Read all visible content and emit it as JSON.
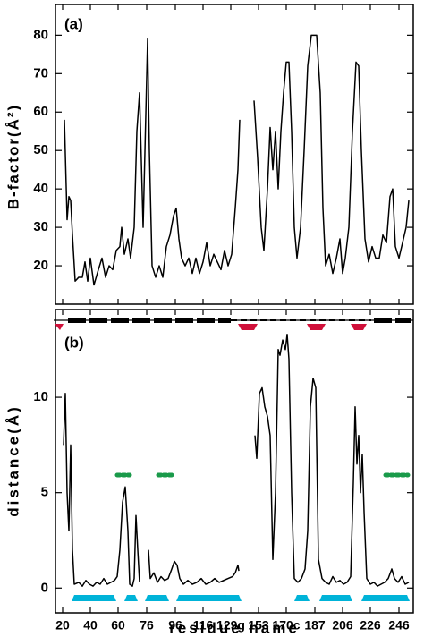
{
  "chart_data": [
    {
      "type": "line",
      "annotation": "(a)",
      "ylabel": "B-factor(Å²)",
      "color": "#000000",
      "xlim": [
        0,
        400
      ],
      "ylim": [
        10,
        88
      ],
      "yticks": [
        20,
        30,
        40,
        50,
        60,
        70,
        80
      ],
      "x": [
        10,
        13,
        15,
        17,
        19,
        22,
        26,
        30,
        33,
        36,
        39,
        43,
        48,
        52,
        56,
        60,
        64,
        68,
        72,
        74,
        77,
        81,
        84,
        88,
        91,
        94,
        98,
        103,
        105,
        108,
        112,
        116,
        120,
        124,
        128,
        132,
        135,
        138,
        141,
        145,
        149,
        153,
        157,
        161,
        165,
        169,
        173,
        177,
        181,
        185,
        189,
        193,
        197,
        201,
        204,
        206,
        214,
        222,
        226,
        230,
        233,
        237,
        240,
        243,
        246,
        249,
        252,
        255,
        258,
        261,
        264,
        267,
        270,
        274,
        278,
        282,
        286,
        292,
        296,
        299,
        302,
        306,
        310,
        314,
        318,
        321,
        324,
        328,
        332,
        336,
        339,
        342,
        346,
        350,
        354,
        358,
        362,
        366,
        370,
        374,
        377,
        380,
        384,
        388,
        392,
        395
      ],
      "values": [
        58,
        32,
        38,
        37,
        28,
        16,
        17,
        17,
        21,
        16,
        22,
        15,
        19,
        22,
        17,
        20,
        19,
        24,
        25,
        30,
        23,
        27,
        22,
        30,
        55,
        65,
        30,
        79,
        50,
        20,
        17,
        20,
        17,
        25,
        28,
        33,
        35,
        27,
        22,
        20,
        22,
        18,
        22,
        18,
        21,
        26,
        20,
        23,
        21,
        19,
        24,
        20,
        23,
        35,
        45,
        58,
        null,
        63,
        48,
        30,
        24,
        40,
        56,
        45,
        55,
        40,
        55,
        65,
        73,
        73,
        55,
        30,
        22,
        30,
        50,
        72,
        80,
        80,
        65,
        35,
        20,
        23,
        18,
        22,
        27,
        18,
        22,
        30,
        55,
        73,
        72,
        50,
        27,
        21,
        25,
        22,
        22,
        28,
        26,
        38,
        40,
        25,
        22,
        26,
        30,
        37
      ]
    },
    {
      "type": "line",
      "annotation": "(b)",
      "ylabel": "distance(Å)",
      "xlabel": "residue name",
      "color": "#000000",
      "xlim": [
        0,
        400
      ],
      "ylim": [
        -1.3,
        14.6
      ],
      "yticks": [
        0,
        5,
        10
      ],
      "xticks": [
        {
          "value": 8,
          "label": "20"
        },
        {
          "value": 39,
          "label": "40"
        },
        {
          "value": 70,
          "label": "60"
        },
        {
          "value": 102,
          "label": "76"
        },
        {
          "value": 134,
          "label": "96"
        },
        {
          "value": 165,
          "label": "116"
        },
        {
          "value": 196,
          "label": "129g"
        },
        {
          "value": 227,
          "label": "153"
        },
        {
          "value": 258,
          "label": "170c"
        },
        {
          "value": 290,
          "label": "187"
        },
        {
          "value": 321,
          "label": "206"
        },
        {
          "value": 352,
          "label": "226"
        },
        {
          "value": 384,
          "label": "246"
        }
      ],
      "x": [
        9,
        11,
        13,
        15,
        17,
        19,
        21,
        26,
        30,
        34,
        38,
        42,
        46,
        50,
        54,
        58,
        62,
        66,
        69,
        72,
        75,
        78,
        81,
        83,
        86,
        88,
        90,
        92,
        94,
        99,
        104,
        106,
        110,
        114,
        118,
        122,
        126,
        130,
        133,
        136,
        139,
        143,
        148,
        153,
        158,
        163,
        168,
        173,
        178,
        183,
        188,
        193,
        198,
        201,
        204,
        205,
        214,
        223,
        225,
        228,
        231,
        234,
        237,
        240,
        243,
        246,
        249,
        251,
        254,
        257,
        259,
        261,
        264,
        267,
        271,
        275,
        279,
        282,
        285,
        288,
        291,
        294,
        298,
        302,
        306,
        310,
        314,
        318,
        322,
        326,
        330,
        333,
        335,
        337,
        339,
        341,
        343,
        345,
        348,
        352,
        356,
        360,
        364,
        368,
        372,
        376,
        379,
        383,
        387,
        391,
        395
      ],
      "values": [
        7.5,
        10.2,
        5,
        3,
        7.5,
        2,
        0.2,
        0.3,
        0.1,
        0.4,
        0.2,
        0.1,
        0.3,
        0.2,
        0.5,
        0.2,
        0.3,
        0.4,
        0.6,
        2,
        4.5,
        5.3,
        3,
        0.2,
        0.1,
        0.5,
        3.8,
        2,
        0.3,
        null,
        2,
        0.5,
        0.8,
        0.3,
        0.6,
        0.4,
        0.5,
        1,
        1.4,
        1.2,
        0.5,
        0.2,
        0.4,
        0.2,
        0.3,
        0.5,
        0.2,
        0.3,
        0.5,
        0.3,
        0.4,
        0.5,
        0.6,
        0.8,
        1.2,
        0.9,
        null,
        8,
        6.8,
        10.2,
        10.5,
        9.5,
        9,
        8,
        1.5,
        5,
        12.5,
        12.2,
        13,
        12.5,
        13.3,
        12,
        5,
        0.5,
        0.3,
        0.5,
        1,
        3,
        9.5,
        11,
        10.5,
        1.5,
        0.5,
        0.3,
        0.2,
        0.6,
        0.3,
        0.4,
        0.2,
        0.3,
        0.6,
        5.5,
        9.5,
        6.5,
        8,
        5,
        7,
        4,
        0.5,
        0.2,
        0.3,
        0.1,
        0.2,
        0.3,
        0.5,
        1,
        0.5,
        0.3,
        0.6,
        0.2,
        0.3
      ]
    }
  ]
}
